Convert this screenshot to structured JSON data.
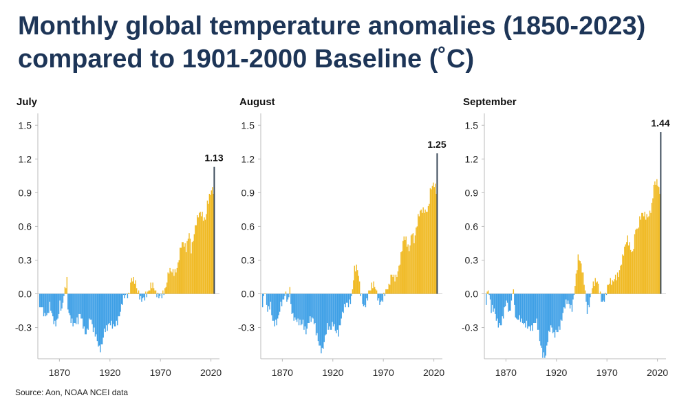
{
  "title": "Monthly global temperature anomalies (1850-2023) compared to 1901-2000 Baseline (˚C)",
  "source": "Source: Aon, NOAA NCEI data",
  "colors": {
    "positive": "#f0b922",
    "negative": "#3d9fe6",
    "highlight": "#3b4a5a",
    "axis": "#bbbbbb",
    "title": "#1d3557"
  },
  "chart_data": [
    {
      "type": "bar",
      "title": "July",
      "x_range": [
        1850,
        2023
      ],
      "y_ticks": [
        "1.5",
        "1.2",
        "0.9",
        "0.6",
        "0.3",
        "0.0",
        "-0.3"
      ],
      "ylim": [
        -0.58,
        1.6
      ],
      "x_ticks": [
        1870,
        1920,
        1970,
        2020
      ],
      "highlight": {
        "year": 2023,
        "value": 1.13,
        "label": "1.13"
      },
      "keyframes": [
        [
          1850,
          -0.08
        ],
        [
          1852,
          -0.05
        ],
        [
          1855,
          -0.2
        ],
        [
          1858,
          -0.25
        ],
        [
          1860,
          -0.15
        ],
        [
          1865,
          -0.22
        ],
        [
          1868,
          -0.18
        ],
        [
          1870,
          -0.1
        ],
        [
          1872,
          -0.2
        ],
        [
          1877,
          0.12
        ],
        [
          1878,
          -0.1
        ],
        [
          1880,
          -0.15
        ],
        [
          1885,
          -0.28
        ],
        [
          1888,
          -0.3
        ],
        [
          1890,
          -0.22
        ],
        [
          1893,
          -0.25
        ],
        [
          1896,
          -0.3
        ],
        [
          1900,
          -0.22
        ],
        [
          1903,
          -0.38
        ],
        [
          1906,
          -0.4
        ],
        [
          1909,
          -0.44
        ],
        [
          1911,
          -0.42
        ],
        [
          1914,
          -0.32
        ],
        [
          1917,
          -0.36
        ],
        [
          1920,
          -0.3
        ],
        [
          1925,
          -0.22
        ],
        [
          1930,
          -0.18
        ],
        [
          1935,
          -0.05
        ],
        [
          1938,
          0.02
        ],
        [
          1941,
          0.2
        ],
        [
          1944,
          0.12
        ],
        [
          1947,
          -0.04
        ],
        [
          1950,
          -0.08
        ],
        [
          1955,
          0.05
        ],
        [
          1960,
          0.04
        ],
        [
          1965,
          -0.02
        ],
        [
          1970,
          0.05
        ],
        [
          1975,
          0.02
        ],
        [
          1978,
          0.15
        ],
        [
          1982,
          0.22
        ],
        [
          1987,
          0.3
        ],
        [
          1990,
          0.4
        ],
        [
          1995,
          0.38
        ],
        [
          1998,
          0.6
        ],
        [
          2000,
          0.45
        ],
        [
          2005,
          0.6
        ],
        [
          2010,
          0.7
        ],
        [
          2014,
          0.72
        ],
        [
          2016,
          0.85
        ],
        [
          2020,
          0.88
        ],
        [
          2022,
          0.86
        ]
      ]
    },
    {
      "type": "bar",
      "title": "August",
      "x_range": [
        1850,
        2023
      ],
      "y_ticks": [
        "1.5",
        "1.2",
        "0.9",
        "0.6",
        "0.3",
        "0.0",
        "-0.3"
      ],
      "ylim": [
        -0.58,
        1.6
      ],
      "x_ticks": [
        1870,
        1920,
        1970,
        2020
      ],
      "highlight": {
        "year": 2023,
        "value": 1.25,
        "label": "1.25"
      },
      "keyframes": [
        [
          1850,
          -0.05
        ],
        [
          1852,
          0.05
        ],
        [
          1855,
          -0.2
        ],
        [
          1858,
          -0.15
        ],
        [
          1860,
          -0.25
        ],
        [
          1865,
          -0.18
        ],
        [
          1868,
          -0.1
        ],
        [
          1870,
          -0.12
        ],
        [
          1873,
          -0.05
        ],
        [
          1875,
          -0.08
        ],
        [
          1877,
          0.1
        ],
        [
          1878,
          -0.05
        ],
        [
          1880,
          -0.15
        ],
        [
          1885,
          -0.3
        ],
        [
          1888,
          -0.32
        ],
        [
          1890,
          -0.25
        ],
        [
          1893,
          -0.28
        ],
        [
          1896,
          -0.2
        ],
        [
          1900,
          -0.28
        ],
        [
          1903,
          -0.38
        ],
        [
          1906,
          -0.42
        ],
        [
          1909,
          -0.45
        ],
        [
          1911,
          -0.4
        ],
        [
          1914,
          -0.33
        ],
        [
          1917,
          -0.38
        ],
        [
          1920,
          -0.25
        ],
        [
          1925,
          -0.3
        ],
        [
          1930,
          -0.2
        ],
        [
          1935,
          -0.08
        ],
        [
          1938,
          0.02
        ],
        [
          1941,
          0.25
        ],
        [
          1944,
          0.18
        ],
        [
          1947,
          -0.04
        ],
        [
          1950,
          -0.1
        ],
        [
          1955,
          0.05
        ],
        [
          1960,
          0.03
        ],
        [
          1965,
          -0.05
        ],
        [
          1970,
          0.02
        ],
        [
          1975,
          0.0
        ],
        [
          1978,
          0.15
        ],
        [
          1982,
          0.2
        ],
        [
          1987,
          0.32
        ],
        [
          1990,
          0.45
        ],
        [
          1995,
          0.42
        ],
        [
          1998,
          0.62
        ],
        [
          2000,
          0.5
        ],
        [
          2005,
          0.65
        ],
        [
          2010,
          0.78
        ],
        [
          2014,
          0.8
        ],
        [
          2016,
          0.92
        ],
        [
          2020,
          0.92
        ],
        [
          2022,
          0.88
        ]
      ]
    },
    {
      "type": "bar",
      "title": "September",
      "x_range": [
        1850,
        2023
      ],
      "y_ticks": [
        "1.5",
        "1.2",
        "0.9",
        "0.6",
        "0.3",
        "0.0",
        "-0.3"
      ],
      "ylim": [
        -0.58,
        1.6
      ],
      "x_ticks": [
        1870,
        1920,
        1970,
        2020
      ],
      "highlight": {
        "year": 2023,
        "value": 1.44,
        "label": "1.44"
      },
      "keyframes": [
        [
          1850,
          -0.05
        ],
        [
          1852,
          0.02
        ],
        [
          1855,
          -0.2
        ],
        [
          1858,
          -0.15
        ],
        [
          1860,
          -0.18
        ],
        [
          1865,
          -0.25
        ],
        [
          1868,
          -0.2
        ],
        [
          1870,
          -0.12
        ],
        [
          1873,
          -0.18
        ],
        [
          1877,
          0.12
        ],
        [
          1878,
          -0.08
        ],
        [
          1880,
          -0.22
        ],
        [
          1885,
          -0.3
        ],
        [
          1888,
          -0.28
        ],
        [
          1890,
          -0.22
        ],
        [
          1893,
          -0.25
        ],
        [
          1896,
          -0.32
        ],
        [
          1900,
          -0.3
        ],
        [
          1903,
          -0.4
        ],
        [
          1906,
          -0.48
        ],
        [
          1909,
          -0.52
        ],
        [
          1911,
          -0.42
        ],
        [
          1914,
          -0.35
        ],
        [
          1917,
          -0.38
        ],
        [
          1920,
          -0.28
        ],
        [
          1925,
          -0.22
        ],
        [
          1930,
          -0.12
        ],
        [
          1935,
          -0.08
        ],
        [
          1938,
          0.12
        ],
        [
          1941,
          0.3
        ],
        [
          1944,
          0.2
        ],
        [
          1947,
          0.1
        ],
        [
          1950,
          -0.1
        ],
        [
          1955,
          0.05
        ],
        [
          1960,
          0.06
        ],
        [
          1965,
          -0.02
        ],
        [
          1970,
          0.05
        ],
        [
          1975,
          0.05
        ],
        [
          1978,
          0.18
        ],
        [
          1982,
          0.25
        ],
        [
          1987,
          0.35
        ],
        [
          1990,
          0.45
        ],
        [
          1995,
          0.42
        ],
        [
          1998,
          0.62
        ],
        [
          2000,
          0.55
        ],
        [
          2005,
          0.68
        ],
        [
          2010,
          0.75
        ],
        [
          2014,
          0.78
        ],
        [
          2016,
          0.92
        ],
        [
          2020,
          0.95
        ],
        [
          2022,
          0.9
        ]
      ]
    }
  ]
}
